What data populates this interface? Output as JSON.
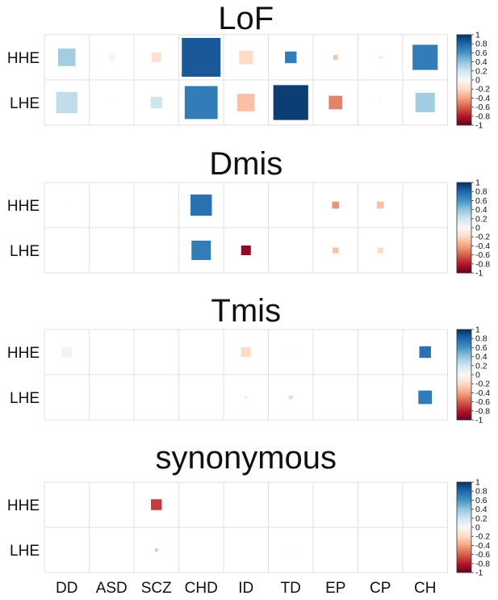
{
  "chart_data": [
    {
      "type": "heatmap",
      "title": "LoF",
      "rows": [
        "HHE",
        "LHE"
      ],
      "columns": [
        "DD",
        "ASD",
        "SCZ",
        "CHD",
        "ID",
        "TD",
        "EP",
        "CP",
        "CH"
      ],
      "values": [
        [
          0.35,
          -0.03,
          -0.15,
          0.85,
          -0.2,
          0.7,
          -0.3,
          -0.1,
          0.7
        ],
        [
          0.25,
          0.02,
          0.2,
          0.7,
          -0.3,
          0.95,
          -0.5,
          0.02,
          0.35
        ]
      ],
      "sizes": [
        [
          0.45,
          0.15,
          0.25,
          1.0,
          0.35,
          0.3,
          0.12,
          0.08,
          0.65
        ],
        [
          0.55,
          0.05,
          0.3,
          0.85,
          0.45,
          0.9,
          0.35,
          0.05,
          0.5
        ]
      ],
      "colorbar": {
        "range": [
          -1,
          1
        ],
        "ticks": [
          "1",
          "0.8",
          "0.6",
          "0.4",
          "0.2",
          "0",
          "-0.2",
          "-0.4",
          "-0.6",
          "-0.8",
          "-1"
        ]
      }
    },
    {
      "type": "heatmap",
      "title": "Dmis",
      "rows": [
        "HHE",
        "LHE"
      ],
      "columns": [
        "DD",
        "ASD",
        "SCZ",
        "CHD",
        "ID",
        "TD",
        "EP",
        "CP",
        "CH"
      ],
      "values": [
        [
          0.03,
          null,
          null,
          0.75,
          null,
          null,
          -0.45,
          -0.3,
          null
        ],
        [
          null,
          null,
          null,
          0.7,
          -0.9,
          null,
          -0.3,
          -0.2,
          null
        ]
      ],
      "sizes": [
        [
          0.05,
          0,
          0,
          0.55,
          0,
          0,
          0.18,
          0.18,
          0
        ],
        [
          0,
          0,
          0,
          0.5,
          0.25,
          0,
          0.15,
          0.15,
          0
        ]
      ],
      "colorbar": {
        "range": [
          -1,
          1
        ],
        "ticks": [
          "1",
          "0.8",
          "0.6",
          "0.4",
          "0.2",
          "0",
          "-0.2",
          "-0.4",
          "-0.6",
          "-0.8",
          "-1"
        ]
      }
    },
    {
      "type": "heatmap",
      "title": "Tmis",
      "rows": [
        "HHE",
        "LHE"
      ],
      "columns": [
        "DD",
        "ASD",
        "SCZ",
        "CHD",
        "ID",
        "TD",
        "EP",
        "CP",
        "CH"
      ],
      "values": [
        [
          0.03,
          null,
          null,
          null,
          -0.2,
          0.02,
          null,
          null,
          0.75
        ],
        [
          null,
          null,
          null,
          null,
          0.1,
          0.2,
          null,
          null,
          0.7
        ]
      ],
      "sizes": [
        [
          0.28,
          0,
          0,
          0,
          0.25,
          0.05,
          0,
          0,
          0.3
        ],
        [
          0,
          0,
          0,
          0,
          0.06,
          0.1,
          0,
          0,
          0.35
        ]
      ],
      "colorbar": {
        "range": [
          -1,
          1
        ],
        "ticks": [
          "1",
          "0.8",
          "0.6",
          "0.4",
          "0.2",
          "0",
          "-0.2",
          "-0.4",
          "-0.6",
          "-0.8",
          "-1"
        ]
      }
    },
    {
      "type": "heatmap",
      "title": "synonymous",
      "rows": [
        "HHE",
        "LHE"
      ],
      "columns": [
        "DD",
        "ASD",
        "SCZ",
        "CHD",
        "ID",
        "TD",
        "EP",
        "CP",
        "CH"
      ],
      "values": [
        [
          null,
          null,
          -0.7,
          null,
          null,
          null,
          null,
          null,
          null
        ],
        [
          null,
          null,
          -0.3,
          null,
          null,
          0.02,
          null,
          null,
          null
        ]
      ],
      "sizes": [
        [
          0,
          0,
          0.28,
          0,
          0,
          0,
          0,
          0,
          0
        ],
        [
          0,
          0,
          0.08,
          0,
          0,
          0.04,
          0,
          0,
          0
        ]
      ],
      "colorbar": {
        "range": [
          -1,
          1
        ],
        "ticks": [
          "1",
          "0.8",
          "0.6",
          "0.4",
          "0.2",
          "0",
          "-0.2",
          "-0.4",
          "-0.6",
          "-0.8",
          "-1"
        ]
      }
    }
  ],
  "x_axis_labels": [
    "DD",
    "ASD",
    "SCZ",
    "CHD",
    "ID",
    "TD",
    "EP",
    "CP",
    "CH"
  ],
  "colors": {
    "positive": "#053061",
    "positive_mid": "#4393c3",
    "neutral": "#f7f7f7",
    "negative_mid": "#d6604d",
    "negative": "#67001f",
    "grid": "#e0e0e0"
  }
}
